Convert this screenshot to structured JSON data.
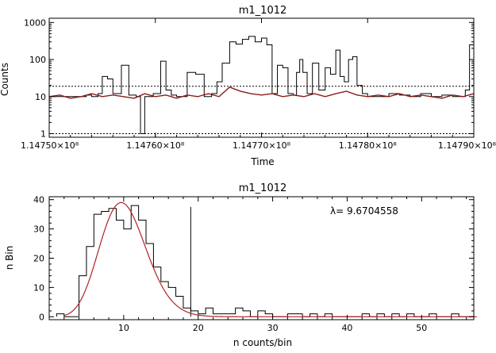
{
  "chart_data": [
    {
      "type": "line",
      "title": "m1_1012",
      "xlabel": "Time",
      "ylabel": "Counts",
      "x_scale": "linear",
      "y_scale": "log",
      "xlim": [
        114750000,
        114790000
      ],
      "ylim": [
        0.8,
        1300
      ],
      "x_tick_labels": [
        "1.14750×10⁸",
        "1.14760×10⁸",
        "1.14770×10⁸",
        "1.14780×10⁸",
        "1.14790×10⁸"
      ],
      "x_tick_values": [
        114750000,
        114760000,
        114770000,
        114780000,
        114790000
      ],
      "y_tick_labels": [
        "1",
        "10",
        "100",
        "1000"
      ],
      "y_tick_values": [
        1,
        10,
        100,
        1000
      ],
      "threshold_line": 19,
      "baseline_dotted": 1,
      "colors": {
        "raw": "#000000",
        "filtered": "#8b1a1a"
      },
      "series": [
        {
          "role": "raw",
          "x": [
            114750000,
            114753000,
            114753500,
            114754000,
            114754600,
            114755000,
            114755500,
            114756000,
            114756800,
            114757500,
            114758200,
            114758600,
            114759000,
            114759800,
            114760500,
            114761000,
            114761500,
            114762000,
            114762500,
            114763000,
            114763800,
            114764600,
            114765300,
            114765800,
            114766300,
            114767000,
            114767600,
            114768200,
            114768800,
            114769400,
            114770000,
            114770500,
            114771000,
            114771500,
            114772000,
            114772500,
            114773000,
            114773300,
            114773600,
            114773900,
            114774300,
            114774800,
            114775400,
            114776000,
            114776500,
            114777000,
            114777400,
            114777800,
            114778200,
            114778600,
            114779000,
            114779500,
            114780000,
            114781000,
            114782000,
            114783000,
            114784000,
            114785000,
            114786000,
            114787000,
            114788000,
            114788800,
            114789200,
            114789600,
            114790000
          ],
          "y": [
            10,
            10,
            11,
            10,
            12,
            35,
            30,
            12,
            70,
            11,
            10,
            1,
            10,
            12,
            90,
            15,
            11,
            10,
            10,
            45,
            40,
            10,
            12,
            25,
            80,
            300,
            260,
            350,
            420,
            300,
            380,
            250,
            12,
            70,
            60,
            12,
            11,
            45,
            100,
            45,
            12,
            80,
            15,
            60,
            40,
            180,
            35,
            25,
            100,
            120,
            20,
            12,
            10,
            10,
            12,
            11,
            10,
            12,
            10,
            11,
            10,
            10,
            15,
            250,
            100
          ]
        },
        {
          "role": "filtered",
          "x": [
            114750000,
            114751000,
            114752000,
            114753000,
            114754000,
            114755000,
            114756000,
            114757000,
            114758000,
            114759000,
            114760000,
            114761000,
            114762000,
            114763000,
            114764000,
            114765000,
            114766000,
            114767000,
            114768000,
            114769000,
            114770000,
            114771000,
            114772000,
            114773000,
            114774000,
            114775000,
            114776000,
            114777000,
            114778000,
            114779000,
            114780000,
            114781000,
            114782000,
            114783000,
            114784000,
            114785000,
            114786000,
            114787000,
            114788000,
            114789000,
            114790000
          ],
          "y": [
            10,
            11,
            9,
            10,
            12,
            10,
            11,
            10,
            9,
            12,
            10,
            11,
            9,
            11,
            10,
            12,
            10,
            18,
            14,
            12,
            11,
            12,
            10,
            11,
            10,
            12,
            10,
            12,
            14,
            11,
            10,
            11,
            10,
            12,
            10,
            11,
            10,
            9,
            11,
            10,
            12
          ]
        }
      ]
    },
    {
      "type": "bar",
      "title": "m1_1012",
      "xlabel": "n counts/bin",
      "ylabel": "n Bin",
      "annotation": "λ= 9.6704558",
      "xlim": [
        0,
        57
      ],
      "ylim": [
        -1,
        41
      ],
      "x_ticks": [
        10,
        20,
        30,
        40,
        50
      ],
      "y_ticks": [
        0,
        10,
        20,
        30,
        40
      ],
      "vertical_marker": 19,
      "histogram_bins_start": 1,
      "histogram_values": [
        1,
        0,
        0,
        14,
        24,
        35,
        36,
        37,
        33,
        30,
        38,
        33,
        25,
        17,
        12,
        10,
        7,
        3,
        2,
        1,
        3,
        1,
        1,
        1,
        3,
        2,
        0,
        2,
        1,
        0,
        0,
        1,
        1,
        0,
        1,
        0,
        1,
        0,
        0,
        0,
        0,
        1,
        0,
        1,
        0,
        1,
        0,
        1,
        0,
        0,
        1,
        0,
        0,
        1,
        0,
        0
      ],
      "fit_curve": "poisson",
      "fit_lambda": 9.6704558,
      "fit_peak": 39,
      "colors": {
        "histogram": "#000000",
        "fit": "#b22222"
      }
    }
  ]
}
